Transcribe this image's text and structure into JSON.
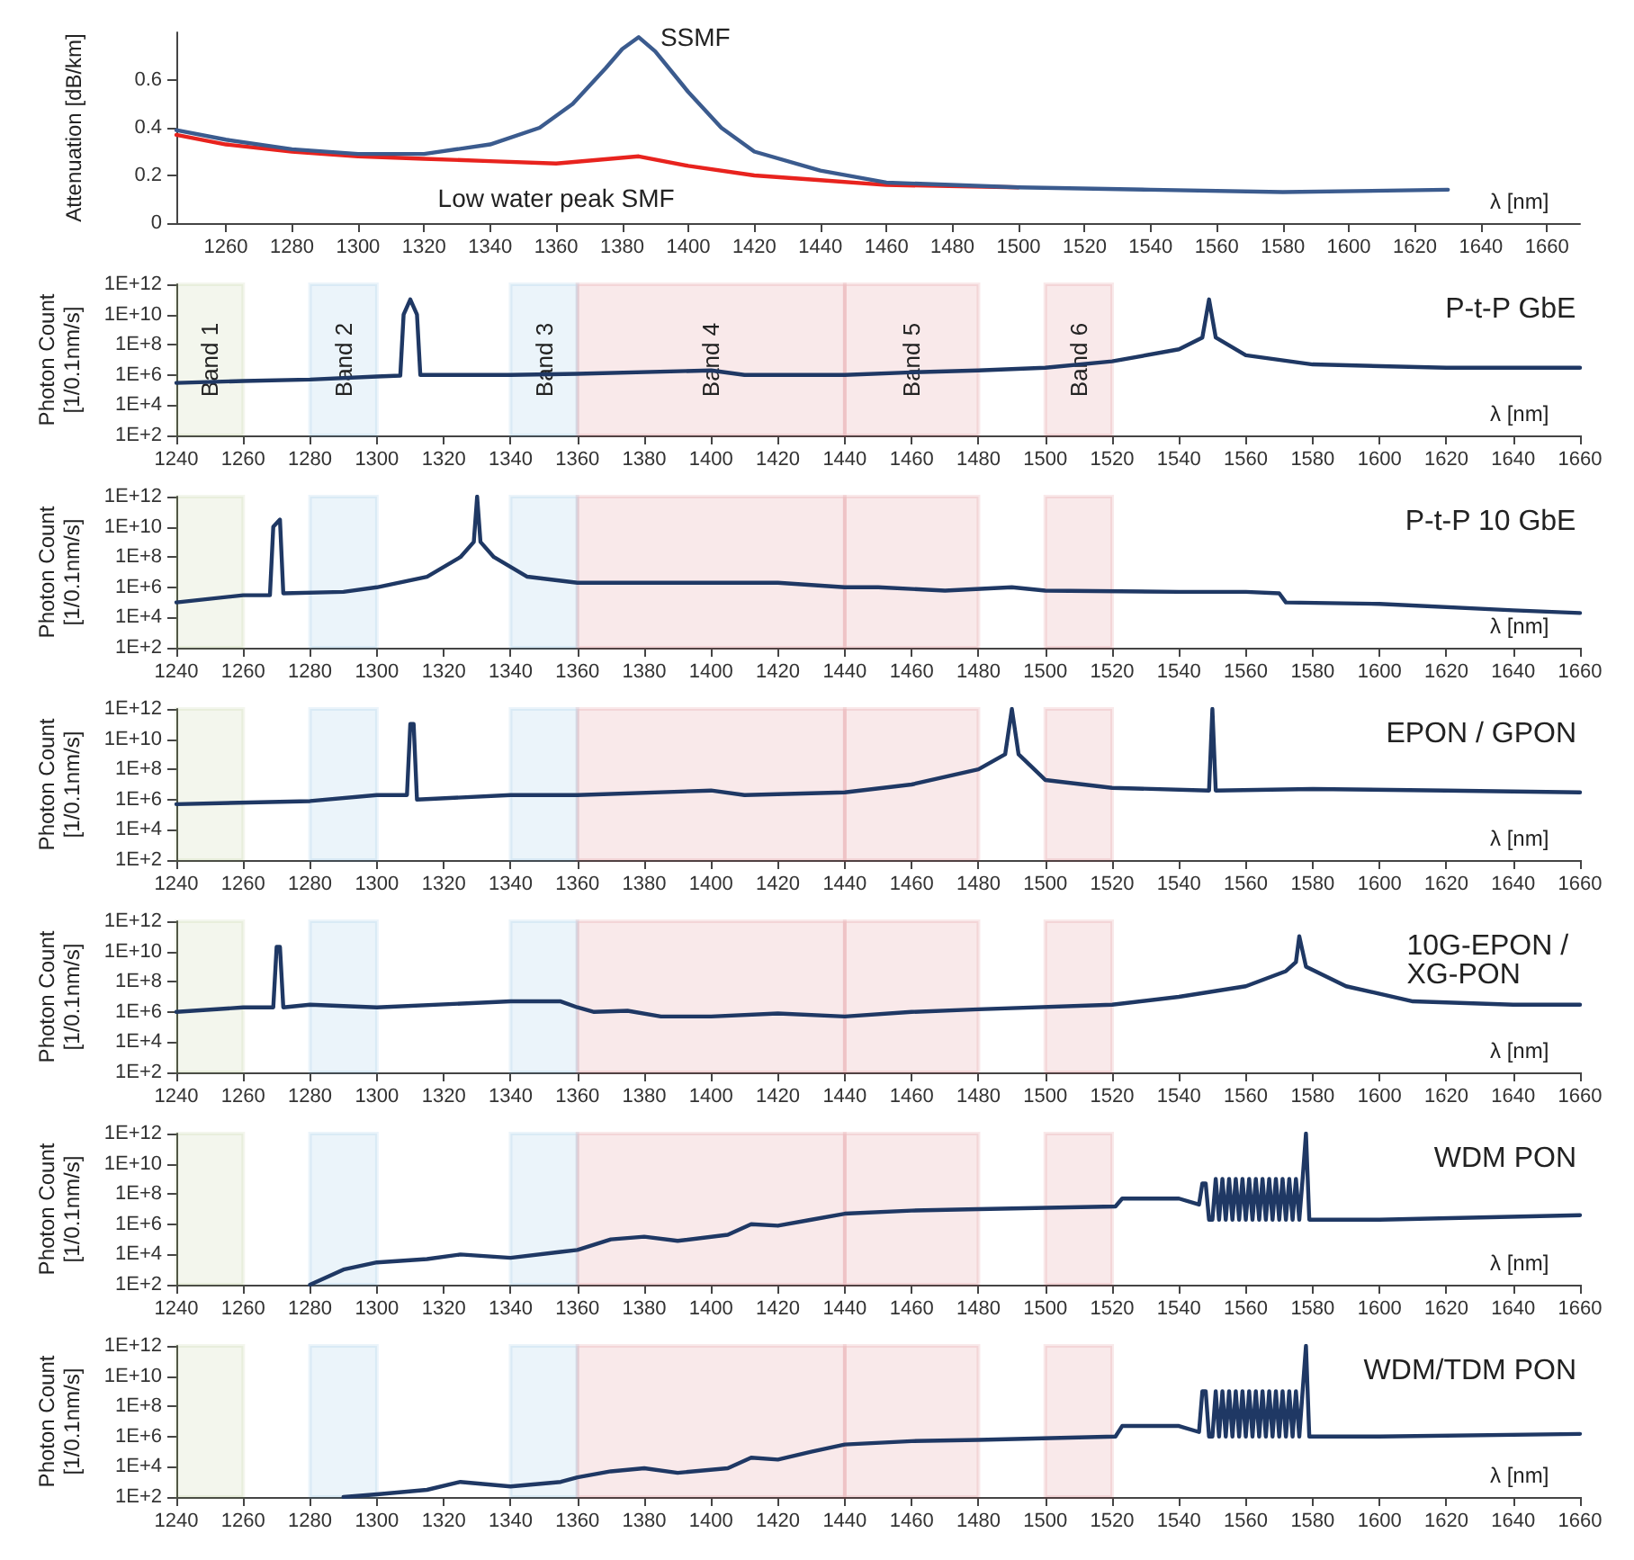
{
  "chart_data": [
    {
      "type": "line",
      "xlabel": "λ [nm]",
      "ylabel": "Attenuation [dB/km]",
      "xlim": [
        1245,
        1670
      ],
      "xticks": [
        1260,
        1280,
        1300,
        1320,
        1340,
        1360,
        1380,
        1400,
        1420,
        1440,
        1460,
        1480,
        1500,
        1520,
        1540,
        1560,
        1580,
        1600,
        1620,
        1640,
        1660
      ],
      "ylim": [
        0,
        0.8
      ],
      "yticks": [
        0,
        0.2,
        0.4,
        0.6
      ],
      "marker": "none",
      "series": [
        {
          "name": "SSMF",
          "color": "#3b5b8e",
          "x": [
            1245,
            1260,
            1280,
            1300,
            1320,
            1340,
            1355,
            1365,
            1375,
            1380,
            1385,
            1390,
            1400,
            1410,
            1420,
            1440,
            1460,
            1500,
            1540,
            1580,
            1630
          ],
          "values": [
            0.39,
            0.35,
            0.31,
            0.29,
            0.29,
            0.33,
            0.4,
            0.5,
            0.65,
            0.73,
            0.78,
            0.72,
            0.55,
            0.4,
            0.3,
            0.22,
            0.17,
            0.15,
            0.14,
            0.13,
            0.14
          ]
        },
        {
          "name": "Low water peak SMF",
          "color": "#e8231e",
          "x": [
            1245,
            1260,
            1280,
            1300,
            1320,
            1340,
            1360,
            1385,
            1400,
            1420,
            1440,
            1460,
            1500
          ],
          "values": [
            0.37,
            0.33,
            0.3,
            0.28,
            0.27,
            0.26,
            0.25,
            0.28,
            0.24,
            0.2,
            0.18,
            0.16,
            0.15
          ]
        }
      ]
    },
    {
      "type": "line",
      "title": "P-t-P GbE",
      "xlabel": "λ [nm]",
      "ylabel": "Photon Count [1/0.1nm/s]",
      "log": true,
      "xlim": [
        1240,
        1660
      ],
      "xticks": [
        1240,
        1260,
        1280,
        1300,
        1320,
        1340,
        1360,
        1380,
        1400,
        1420,
        1440,
        1460,
        1480,
        1500,
        1520,
        1540,
        1560,
        1580,
        1600,
        1620,
        1640,
        1660
      ],
      "ylim": [
        100,
        1000000000000
      ],
      "yticks": [
        {
          "value": 100,
          "label": "1E+2"
        },
        {
          "value": 10000,
          "label": "1E+4"
        },
        {
          "value": 1000000,
          "label": "1E+6"
        },
        {
          "value": 100000000,
          "label": "1E+8"
        },
        {
          "value": 10000000000,
          "label": "1E+10"
        },
        {
          "value": 1000000000000,
          "label": "1E+12"
        }
      ],
      "marker": "none",
      "bands": [
        {
          "axis": "x",
          "from": 1240,
          "to": 1260,
          "label": "Band 1",
          "color": "#8aa84a"
        },
        {
          "axis": "x",
          "from": 1280,
          "to": 1300,
          "label": "Band 2",
          "color": "#3f8fd0"
        },
        {
          "axis": "x",
          "from": 1340,
          "to": 1360,
          "label": "Band 3",
          "color": "#3f8fd0"
        },
        {
          "axis": "x",
          "from": 1360,
          "to": 1440,
          "label": "Band 4",
          "color": "#c0262e"
        },
        {
          "axis": "x",
          "from": 1440,
          "to": 1480,
          "label": "Band 5",
          "color": "#c0262e"
        },
        {
          "axis": "x",
          "from": 1500,
          "to": 1520,
          "label": "Band 6",
          "color": "#c0262e"
        }
      ],
      "series": [
        {
          "color": "#1f3864",
          "x": [
            1240,
            1260,
            1280,
            1300,
            1307,
            1308,
            1310,
            1312,
            1313,
            1340,
            1360,
            1400,
            1410,
            1420,
            1440,
            1460,
            1480,
            1500,
            1520,
            1540,
            1547,
            1549,
            1551,
            1560,
            1580,
            1620,
            1660
          ],
          "values": [
            300000,
            400000,
            500000,
            800000,
            900000,
            10000000000,
            100000000000,
            10000000000,
            1000000,
            1000000,
            1200000,
            2000000,
            1000000,
            1000000,
            1000000,
            1500000,
            2000000,
            3000000,
            8000000,
            50000000,
            300000000,
            100000000000,
            300000000,
            20000000,
            5000000,
            3000000,
            3000000
          ]
        }
      ]
    },
    {
      "type": "line",
      "title": "P-t-P 10 GbE",
      "xlabel": "λ [nm]",
      "ylabel": "Photon Count [1/0.1nm/s]",
      "log": true,
      "xlim": [
        1240,
        1660
      ],
      "xticks": [
        1240,
        1260,
        1280,
        1300,
        1320,
        1340,
        1360,
        1380,
        1400,
        1420,
        1440,
        1460,
        1480,
        1500,
        1520,
        1540,
        1560,
        1580,
        1600,
        1620,
        1640,
        1660
      ],
      "ylim": [
        100,
        1000000000000
      ],
      "yticks": [
        {
          "value": 100,
          "label": "1E+2"
        },
        {
          "value": 10000,
          "label": "1E+4"
        },
        {
          "value": 1000000,
          "label": "1E+6"
        },
        {
          "value": 100000000,
          "label": "1E+8"
        },
        {
          "value": 10000000000,
          "label": "1E+10"
        },
        {
          "value": 1000000000000,
          "label": "1E+12"
        }
      ],
      "marker": "none",
      "bands": [
        {
          "axis": "x",
          "from": 1240,
          "to": 1260,
          "color": "#8aa84a"
        },
        {
          "axis": "x",
          "from": 1280,
          "to": 1300,
          "color": "#3f8fd0"
        },
        {
          "axis": "x",
          "from": 1340,
          "to": 1360,
          "color": "#3f8fd0"
        },
        {
          "axis": "x",
          "from": 1360,
          "to": 1440,
          "color": "#c0262e"
        },
        {
          "axis": "x",
          "from": 1440,
          "to": 1480,
          "color": "#c0262e"
        },
        {
          "axis": "x",
          "from": 1500,
          "to": 1520,
          "color": "#c0262e"
        }
      ],
      "series": [
        {
          "color": "#1f3864",
          "x": [
            1240,
            1260,
            1268,
            1269,
            1271,
            1272,
            1290,
            1300,
            1315,
            1325,
            1329,
            1330,
            1331,
            1335,
            1345,
            1360,
            1400,
            1420,
            1440,
            1450,
            1470,
            1490,
            1500,
            1540,
            1560,
            1570,
            1572,
            1600,
            1640,
            1660
          ],
          "values": [
            100000,
            300000,
            300000,
            10000000000,
            30000000000,
            400000,
            500000,
            1000000,
            5000000,
            100000000,
            1000000000,
            1000000000000,
            1000000000,
            100000000,
            5000000,
            2000000,
            2000000,
            2000000,
            1000000,
            1000000,
            600000,
            1000000,
            600000,
            500000,
            500000,
            400000,
            100000,
            80000,
            30000,
            20000
          ]
        }
      ]
    },
    {
      "type": "line",
      "title": "EPON / GPON",
      "xlabel": "λ [nm]",
      "ylabel": "Photon Count [1/0.1nm/s]",
      "log": true,
      "xlim": [
        1240,
        1660
      ],
      "xticks": [
        1240,
        1260,
        1280,
        1300,
        1320,
        1340,
        1360,
        1380,
        1400,
        1420,
        1440,
        1460,
        1480,
        1500,
        1520,
        1540,
        1560,
        1580,
        1600,
        1620,
        1640,
        1660
      ],
      "ylim": [
        100,
        1000000000000
      ],
      "yticks": [
        {
          "value": 100,
          "label": "1E+2"
        },
        {
          "value": 10000,
          "label": "1E+4"
        },
        {
          "value": 1000000,
          "label": "1E+6"
        },
        {
          "value": 100000000,
          "label": "1E+8"
        },
        {
          "value": 10000000000,
          "label": "1E+10"
        },
        {
          "value": 1000000000000,
          "label": "1E+12"
        }
      ],
      "marker": "none",
      "bands": [
        {
          "axis": "x",
          "from": 1240,
          "to": 1260,
          "color": "#8aa84a"
        },
        {
          "axis": "x",
          "from": 1280,
          "to": 1300,
          "color": "#3f8fd0"
        },
        {
          "axis": "x",
          "from": 1340,
          "to": 1360,
          "color": "#3f8fd0"
        },
        {
          "axis": "x",
          "from": 1360,
          "to": 1440,
          "color": "#c0262e"
        },
        {
          "axis": "x",
          "from": 1440,
          "to": 1480,
          "color": "#c0262e"
        },
        {
          "axis": "x",
          "from": 1500,
          "to": 1520,
          "color": "#c0262e"
        }
      ],
      "series": [
        {
          "color": "#1f3864",
          "x": [
            1240,
            1280,
            1300,
            1309,
            1310,
            1311,
            1312,
            1340,
            1360,
            1400,
            1410,
            1440,
            1460,
            1480,
            1488,
            1490,
            1492,
            1500,
            1520,
            1549,
            1550,
            1551,
            1580,
            1620,
            1660
          ],
          "values": [
            500000,
            800000,
            2000000,
            2000000,
            100000000000,
            100000000000,
            1000000,
            2000000,
            2000000,
            4000000,
            2000000,
            3000000,
            10000000,
            100000000,
            1000000000,
            1000000000000,
            1000000000,
            20000000,
            6000000,
            4000000,
            1000000000000,
            4000000,
            5000000,
            4000000,
            3000000
          ]
        }
      ]
    },
    {
      "type": "line",
      "title": "10G-EPON / XG-PON",
      "xlabel": "λ [nm]",
      "ylabel": "Photon Count [1/0.1nm/s]",
      "log": true,
      "xlim": [
        1240,
        1660
      ],
      "xticks": [
        1240,
        1260,
        1280,
        1300,
        1320,
        1340,
        1360,
        1380,
        1400,
        1420,
        1440,
        1460,
        1480,
        1500,
        1520,
        1540,
        1560,
        1580,
        1600,
        1620,
        1640,
        1660
      ],
      "ylim": [
        100,
        1000000000000
      ],
      "yticks": [
        {
          "value": 100,
          "label": "1E+2"
        },
        {
          "value": 10000,
          "label": "1E+4"
        },
        {
          "value": 1000000,
          "label": "1E+6"
        },
        {
          "value": 100000000,
          "label": "1E+8"
        },
        {
          "value": 10000000000,
          "label": "1E+10"
        },
        {
          "value": 1000000000000,
          "label": "1E+12"
        }
      ],
      "marker": "none",
      "bands": [
        {
          "axis": "x",
          "from": 1240,
          "to": 1260,
          "color": "#8aa84a"
        },
        {
          "axis": "x",
          "from": 1280,
          "to": 1300,
          "color": "#3f8fd0"
        },
        {
          "axis": "x",
          "from": 1340,
          "to": 1360,
          "color": "#3f8fd0"
        },
        {
          "axis": "x",
          "from": 1360,
          "to": 1440,
          "color": "#c0262e"
        },
        {
          "axis": "x",
          "from": 1440,
          "to": 1480,
          "color": "#c0262e"
        },
        {
          "axis": "x",
          "from": 1500,
          "to": 1520,
          "color": "#c0262e"
        }
      ],
      "series": [
        {
          "color": "#1f3864",
          "x": [
            1240,
            1260,
            1269,
            1270,
            1271,
            1272,
            1280,
            1300,
            1340,
            1355,
            1360,
            1365,
            1375,
            1385,
            1400,
            1420,
            1440,
            1460,
            1480,
            1520,
            1540,
            1560,
            1572,
            1575,
            1576,
            1578,
            1590,
            1610,
            1640,
            1660
          ],
          "values": [
            1000000,
            2000000,
            2000000,
            20000000000,
            20000000000,
            2000000,
            3000000,
            2000000,
            5000000,
            5000000,
            2000000,
            1000000,
            1200000,
            500000,
            500000,
            800000,
            500000,
            1000000,
            1500000,
            3000000,
            10000000,
            50000000,
            500000000,
            2000000000,
            100000000000,
            1000000000,
            50000000,
            5000000,
            3000000,
            3000000
          ]
        }
      ]
    },
    {
      "type": "line",
      "title": "WDM PON",
      "xlabel": "λ [nm]",
      "ylabel": "Photon Count [1/0.1nm/s]",
      "log": true,
      "xlim": [
        1240,
        1660
      ],
      "xticks": [
        1240,
        1260,
        1280,
        1300,
        1320,
        1340,
        1360,
        1380,
        1400,
        1420,
        1440,
        1460,
        1480,
        1500,
        1520,
        1540,
        1560,
        1580,
        1600,
        1620,
        1640,
        1660
      ],
      "ylim": [
        100,
        1000000000000
      ],
      "yticks": [
        {
          "value": 100,
          "label": "1E+2"
        },
        {
          "value": 10000,
          "label": "1E+4"
        },
        {
          "value": 1000000,
          "label": "1E+6"
        },
        {
          "value": 100000000,
          "label": "1E+8"
        },
        {
          "value": 10000000000,
          "label": "1E+10"
        },
        {
          "value": 1000000000000,
          "label": "1E+12"
        }
      ],
      "marker": "none",
      "bands": [
        {
          "axis": "x",
          "from": 1240,
          "to": 1260,
          "color": "#8aa84a"
        },
        {
          "axis": "x",
          "from": 1280,
          "to": 1300,
          "color": "#3f8fd0"
        },
        {
          "axis": "x",
          "from": 1340,
          "to": 1360,
          "color": "#3f8fd0"
        },
        {
          "axis": "x",
          "from": 1360,
          "to": 1440,
          "color": "#c0262e"
        },
        {
          "axis": "x",
          "from": 1440,
          "to": 1480,
          "color": "#c0262e"
        },
        {
          "axis": "x",
          "from": 1500,
          "to": 1520,
          "color": "#c0262e"
        }
      ],
      "series": [
        {
          "color": "#1f3864",
          "x": [
            1280,
            1290,
            1300,
            1315,
            1325,
            1340,
            1355,
            1360,
            1370,
            1380,
            1390,
            1405,
            1412,
            1420,
            1430,
            1440,
            1460,
            1480,
            1521,
            1523,
            1530,
            1540,
            1546,
            1547,
            1548,
            1549,
            1550,
            1551,
            1552,
            1553,
            1554,
            1555,
            1556,
            1557,
            1558,
            1559,
            1560,
            1561,
            1562,
            1563,
            1564,
            1565,
            1566,
            1567,
            1568,
            1569,
            1570,
            1571,
            1572,
            1573,
            1574,
            1575,
            1576,
            1577,
            1578,
            1579,
            1600,
            1660
          ],
          "values": [
            100,
            1000,
            3000,
            5000,
            10000,
            6000,
            15000,
            20000,
            100000,
            150000,
            80000,
            200000,
            1000000,
            800000,
            2000000,
            5000000,
            8000000,
            10000000,
            15000000,
            50000000,
            50000000,
            50000000,
            20000000,
            500000000,
            500000000,
            2000000,
            2000000,
            1000000000,
            2000000,
            1000000000,
            2000000,
            1000000000,
            2000000,
            1000000000,
            2000000,
            1000000000,
            2000000,
            1000000000,
            2000000,
            1000000000,
            2000000,
            1000000000,
            2000000,
            1000000000,
            2000000,
            1000000000,
            2000000,
            1000000000,
            2000000,
            1000000000,
            2000000,
            1000000000,
            2000000,
            1000000000,
            1000000000000,
            2000000,
            2000000,
            4000000
          ]
        }
      ]
    },
    {
      "type": "line",
      "title": "WDM/TDM PON",
      "xlabel": "λ [nm]",
      "ylabel": "Photon Count [1/0.1nm/s]",
      "log": true,
      "xlim": [
        1240,
        1660
      ],
      "xticks": [
        1240,
        1260,
        1280,
        1300,
        1320,
        1340,
        1360,
        1380,
        1400,
        1420,
        1440,
        1460,
        1480,
        1500,
        1520,
        1540,
        1560,
        1580,
        1600,
        1620,
        1640,
        1660
      ],
      "ylim": [
        100,
        1000000000000
      ],
      "yticks": [
        {
          "value": 100,
          "label": "1E+2"
        },
        {
          "value": 10000,
          "label": "1E+4"
        },
        {
          "value": 1000000,
          "label": "1E+6"
        },
        {
          "value": 100000000,
          "label": "1E+8"
        },
        {
          "value": 10000000000,
          "label": "1E+10"
        },
        {
          "value": 1000000000000,
          "label": "1E+12"
        }
      ],
      "marker": "none",
      "bands": [
        {
          "axis": "x",
          "from": 1240,
          "to": 1260,
          "color": "#8aa84a"
        },
        {
          "axis": "x",
          "from": 1280,
          "to": 1300,
          "color": "#3f8fd0"
        },
        {
          "axis": "x",
          "from": 1340,
          "to": 1360,
          "color": "#3f8fd0"
        },
        {
          "axis": "x",
          "from": 1360,
          "to": 1440,
          "color": "#c0262e"
        },
        {
          "axis": "x",
          "from": 1440,
          "to": 1480,
          "color": "#c0262e"
        },
        {
          "axis": "x",
          "from": 1500,
          "to": 1520,
          "color": "#c0262e"
        }
      ],
      "series": [
        {
          "color": "#1f3864",
          "x": [
            1290,
            1300,
            1315,
            1325,
            1340,
            1355,
            1360,
            1370,
            1380,
            1390,
            1405,
            1412,
            1420,
            1430,
            1440,
            1460,
            1480,
            1521,
            1523,
            1530,
            1540,
            1546,
            1547,
            1548,
            1549,
            1550,
            1551,
            1552,
            1553,
            1554,
            1555,
            1556,
            1557,
            1558,
            1559,
            1560,
            1561,
            1562,
            1563,
            1564,
            1565,
            1566,
            1567,
            1568,
            1569,
            1570,
            1571,
            1572,
            1573,
            1574,
            1575,
            1576,
            1577,
            1578,
            1579,
            1600,
            1660
          ],
          "values": [
            100,
            150,
            300,
            1000,
            500,
            1000,
            2000,
            5000,
            8000,
            4000,
            8000,
            40000,
            30000,
            100000,
            300000,
            500000,
            600000,
            1000000,
            5000000,
            5000000,
            5000000,
            2000000,
            1000000000,
            1000000000,
            1000000,
            1000000,
            1000000000,
            1000000,
            1000000000,
            1000000,
            1000000000,
            1000000,
            1000000000,
            1000000,
            1000000000,
            1000000,
            1000000000,
            1000000,
            1000000000,
            1000000,
            1000000000,
            1000000,
            1000000000,
            1000000,
            1000000000,
            1000000,
            1000000000,
            1000000,
            1000000000,
            1000000,
            1000000000,
            1000000,
            1000000000,
            1000000000000,
            1000000,
            1000000,
            1500000
          ]
        }
      ]
    }
  ]
}
